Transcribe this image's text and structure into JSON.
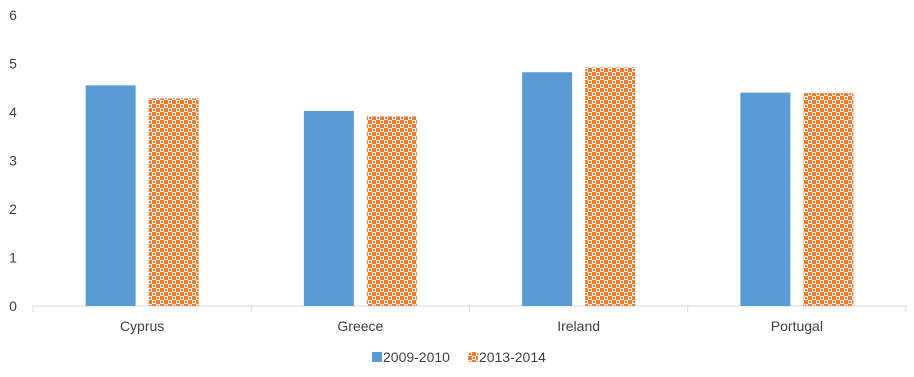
{
  "chart_data": {
    "type": "bar",
    "title": "",
    "xlabel": "",
    "ylabel": "",
    "categories": [
      "Cyprus",
      "Greece",
      "Ireland",
      "Portugal"
    ],
    "series": [
      {
        "name": "2009-2010",
        "values": [
          4.55,
          4.02,
          4.82,
          4.4
        ],
        "color": "#5B9BD5",
        "pattern": "solid"
      },
      {
        "name": "2013-2014",
        "values": [
          4.28,
          3.91,
          4.92,
          4.39
        ],
        "color": "#ED7D31",
        "pattern": "dotted-check"
      }
    ],
    "ylim": [
      0,
      6
    ],
    "yticks": [
      "0",
      "1",
      "2",
      "3",
      "4",
      "5",
      "6"
    ],
    "grid": false,
    "legend_position": "bottom"
  }
}
